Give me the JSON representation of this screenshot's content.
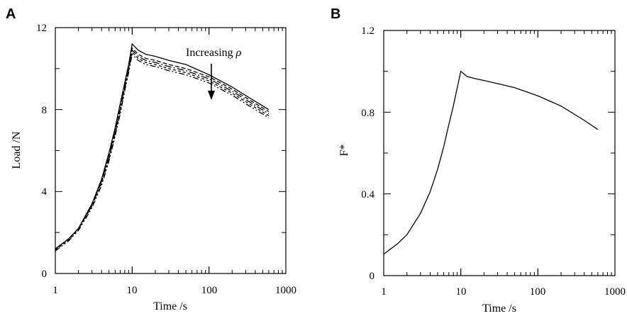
{
  "chart_data": [
    {
      "type": "line",
      "panel_label": "A",
      "xlabel": "Time /s",
      "ylabel": "Load /N",
      "x_scale": "log",
      "xlim": [
        1,
        1000
      ],
      "ylim": [
        0,
        12
      ],
      "x_ticks": [
        "1",
        "10",
        "100",
        "1000"
      ],
      "y_ticks": [
        "0",
        "4",
        "8",
        "12"
      ],
      "annotation": {
        "text": "Increasing ",
        "symbol": "ρ"
      },
      "series": [
        {
          "dash": "",
          "x": [
            1,
            1.5,
            2,
            3,
            4,
            5,
            6,
            7,
            8,
            9,
            10,
            12,
            15,
            20,
            30,
            50,
            100,
            200,
            400,
            600
          ],
          "y": [
            1.2,
            1.7,
            2.2,
            3.4,
            4.6,
            5.9,
            7.1,
            8.3,
            9.3,
            10.2,
            11.2,
            10.9,
            10.7,
            10.6,
            10.4,
            10.2,
            9.7,
            9.1,
            8.4,
            8.0
          ]
        },
        {
          "dash": "6,3",
          "x": [
            1,
            1.5,
            2,
            3,
            4,
            5,
            6,
            7,
            8,
            9,
            10,
            12,
            15,
            20,
            30,
            50,
            100,
            200,
            400,
            600
          ],
          "y": [
            1.2,
            1.7,
            2.2,
            3.4,
            4.5,
            5.8,
            7.0,
            8.2,
            9.2,
            10.1,
            11.0,
            10.7,
            10.5,
            10.4,
            10.2,
            10.0,
            9.6,
            9.0,
            8.3,
            7.9
          ]
        },
        {
          "dash": "10,3,2,3",
          "x": [
            1,
            1.5,
            2,
            3,
            4,
            5,
            6,
            7,
            8,
            9,
            10,
            12,
            15,
            20,
            30,
            50,
            100,
            200,
            400,
            600
          ],
          "y": [
            1.2,
            1.7,
            2.2,
            3.3,
            4.5,
            5.7,
            6.9,
            8.0,
            9.1,
            10.0,
            10.9,
            10.6,
            10.4,
            10.3,
            10.1,
            9.9,
            9.5,
            8.9,
            8.2,
            7.8
          ]
        },
        {
          "dash": "4,3",
          "x": [
            1,
            1.5,
            2,
            3,
            4,
            5,
            6,
            7,
            8,
            9,
            10,
            12,
            15,
            20,
            30,
            50,
            100,
            200,
            400,
            600
          ],
          "y": [
            1.15,
            1.65,
            2.15,
            3.3,
            4.4,
            5.6,
            6.8,
            7.9,
            9.0,
            9.9,
            10.8,
            10.5,
            10.3,
            10.2,
            10.0,
            9.8,
            9.4,
            8.8,
            8.1,
            7.7
          ]
        },
        {
          "dash": "8,3,2,3,2,3",
          "x": [
            1,
            1.5,
            2,
            3,
            4,
            5,
            6,
            7,
            8,
            9,
            10,
            12,
            15,
            20,
            30,
            50,
            100,
            200,
            400,
            600
          ],
          "y": [
            1.1,
            1.6,
            2.1,
            3.2,
            4.3,
            5.5,
            6.7,
            7.8,
            8.9,
            9.8,
            10.7,
            10.4,
            10.2,
            10.1,
            9.9,
            9.7,
            9.3,
            8.7,
            8.0,
            7.6
          ]
        }
      ]
    },
    {
      "type": "line",
      "panel_label": "B",
      "xlabel": "Time /s",
      "ylabel": "F*",
      "x_scale": "log",
      "xlim": [
        1,
        1000
      ],
      "ylim": [
        0,
        1.2
      ],
      "x_ticks": [
        "1",
        "10",
        "100",
        "1000"
      ],
      "y_ticks": [
        "0",
        "0.4",
        "0.8",
        "1.2"
      ],
      "series": [
        {
          "dash": "",
          "x": [
            1,
            1.5,
            2,
            3,
            4,
            5,
            6,
            7,
            8,
            9,
            10,
            12,
            15,
            20,
            30,
            50,
            100,
            200,
            400,
            600
          ],
          "y": [
            0.105,
            0.155,
            0.2,
            0.305,
            0.41,
            0.52,
            0.63,
            0.74,
            0.83,
            0.92,
            1.0,
            0.975,
            0.965,
            0.955,
            0.94,
            0.92,
            0.88,
            0.83,
            0.76,
            0.715
          ]
        }
      ]
    }
  ]
}
